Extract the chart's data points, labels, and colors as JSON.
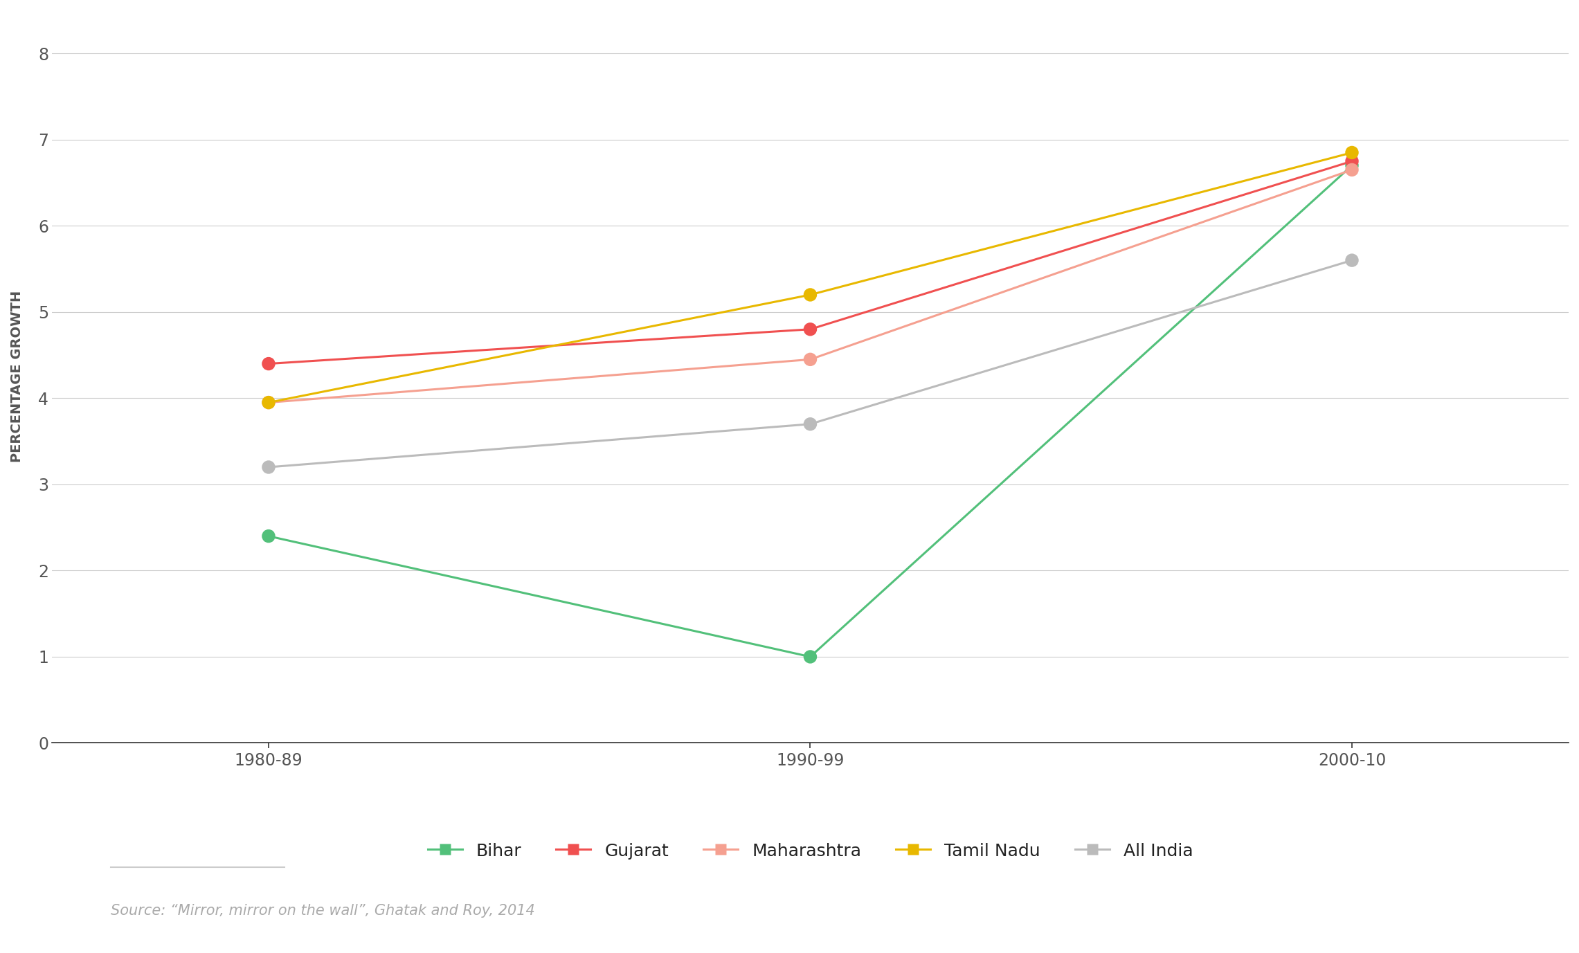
{
  "x_labels": [
    "1980-89",
    "1990-99",
    "2000-10"
  ],
  "x_positions": [
    0,
    1,
    2
  ],
  "series": [
    {
      "name": "Bihar",
      "values": [
        2.4,
        1.0,
        6.7
      ],
      "line_color": "#52C07A",
      "marker_color": "#52C07A",
      "linewidth": 2.2,
      "marker_size": 14
    },
    {
      "name": "Gujarat",
      "values": [
        4.4,
        4.8,
        6.75
      ],
      "line_color": "#F05050",
      "marker_color": "#F05050",
      "linewidth": 2.2,
      "marker_size": 14
    },
    {
      "name": "Maharashtra",
      "values": [
        3.95,
        4.45,
        6.65
      ],
      "line_color": "#F5A090",
      "marker_color": "#F5A090",
      "linewidth": 2.2,
      "marker_size": 14
    },
    {
      "name": "Tamil Nadu",
      "values": [
        3.95,
        5.2,
        6.85
      ],
      "line_color": "#E8B800",
      "marker_color": "#E8B800",
      "linewidth": 2.2,
      "marker_size": 14
    },
    {
      "name": "All India",
      "values": [
        3.2,
        3.7,
        5.6
      ],
      "line_color": "#BBBBBB",
      "marker_color": "#BBBBBB",
      "linewidth": 2.2,
      "marker_size": 14
    }
  ],
  "ylabel": "PERCENTAGE GROWTH",
  "ylim": [
    0,
    8.5
  ],
  "yticks": [
    0,
    1,
    2,
    3,
    4,
    5,
    6,
    7,
    8
  ],
  "source_text": "Source: “Mirror, mirror on the wall”, Ghatak and Roy, 2014",
  "background_color": "#FFFFFF",
  "grid_color": "#CCCCCC",
  "tick_label_color": "#555555",
  "ylabel_color": "#555555",
  "legend_fontsize": 18,
  "ylabel_fontsize": 14,
  "tick_fontsize": 17,
  "source_fontsize": 15
}
